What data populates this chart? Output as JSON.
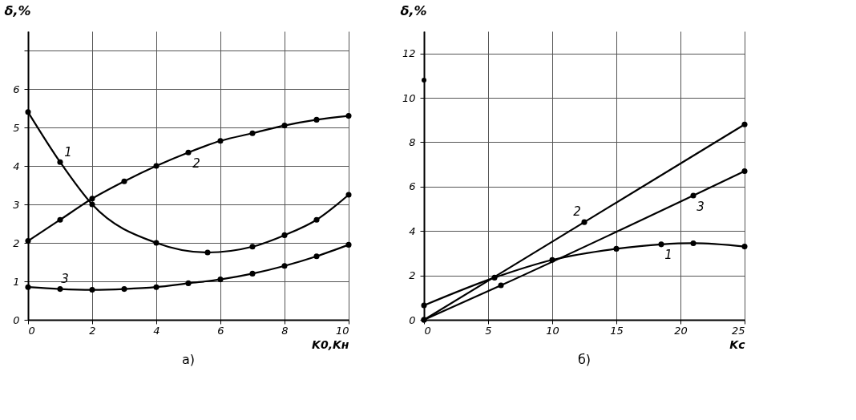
{
  "chart_data": [
    {
      "type": "line",
      "title": "а)",
      "xlabel": "K0,Kн",
      "ylabel": "δ,%",
      "xlim": [
        0,
        10
      ],
      "ylim": [
        0,
        7.5
      ],
      "xticks": [
        0,
        2,
        4,
        6,
        8,
        10
      ],
      "yticks": [
        0,
        1,
        2,
        3,
        4,
        5,
        6,
        {
          "value": 7,
          "label": null
        }
      ],
      "grid": true,
      "marker": "circle",
      "line_style": "solid",
      "legend": false,
      "series": [
        {
          "name": "1",
          "color": "#000000",
          "x": [
            0,
            1,
            2,
            4,
            5.6,
            7,
            8,
            9,
            10
          ],
          "values": [
            5.4,
            4.1,
            3.0,
            2.0,
            1.75,
            1.9,
            2.2,
            2.6,
            3.25
          ]
        },
        {
          "name": "2",
          "color": "#000000",
          "x": [
            0,
            1,
            2,
            3,
            4,
            5,
            6,
            7,
            8,
            9,
            10
          ],
          "values": [
            2.05,
            2.6,
            3.15,
            3.6,
            4.0,
            4.35,
            4.65,
            4.85,
            5.05,
            5.2,
            5.3
          ]
        },
        {
          "name": "3",
          "color": "#000000",
          "x": [
            0,
            1,
            2,
            3,
            4,
            5,
            6,
            7,
            8,
            9,
            10
          ],
          "values": [
            0.85,
            0.8,
            0.78,
            0.8,
            0.85,
            0.95,
            1.05,
            1.2,
            1.4,
            1.65,
            1.95
          ]
        }
      ]
    },
    {
      "type": "line",
      "title": "б)",
      "xlabel": "Kс",
      "ylabel": "δ,%",
      "xlim": [
        0,
        25
      ],
      "ylim": [
        0,
        13
      ],
      "xticks": [
        0,
        5,
        10,
        15,
        20,
        25
      ],
      "yticks": [
        0,
        2,
        4,
        6,
        8,
        10,
        12
      ],
      "grid": true,
      "marker": "circle",
      "line_style": "solid",
      "legend": false,
      "series": [
        {
          "name": "1",
          "color": "#000000",
          "x": [
            0,
            5.5,
            10,
            15,
            18.5,
            21,
            25
          ],
          "values": [
            0.65,
            1.9,
            2.7,
            3.2,
            3.4,
            3.45,
            3.3
          ]
        },
        {
          "name": "2",
          "color": "#000000",
          "x": [
            0,
            12.5,
            25
          ],
          "values": [
            0,
            4.4,
            8.8
          ]
        },
        {
          "name": "3",
          "color": "#000000",
          "x": [
            0,
            6,
            21,
            25
          ],
          "values": [
            0,
            1.55,
            5.6,
            6.7
          ]
        },
        {
          "type": "scatter",
          "color": "#000000",
          "x": [
            0
          ],
          "values": [
            10.8
          ]
        }
      ]
    }
  ]
}
